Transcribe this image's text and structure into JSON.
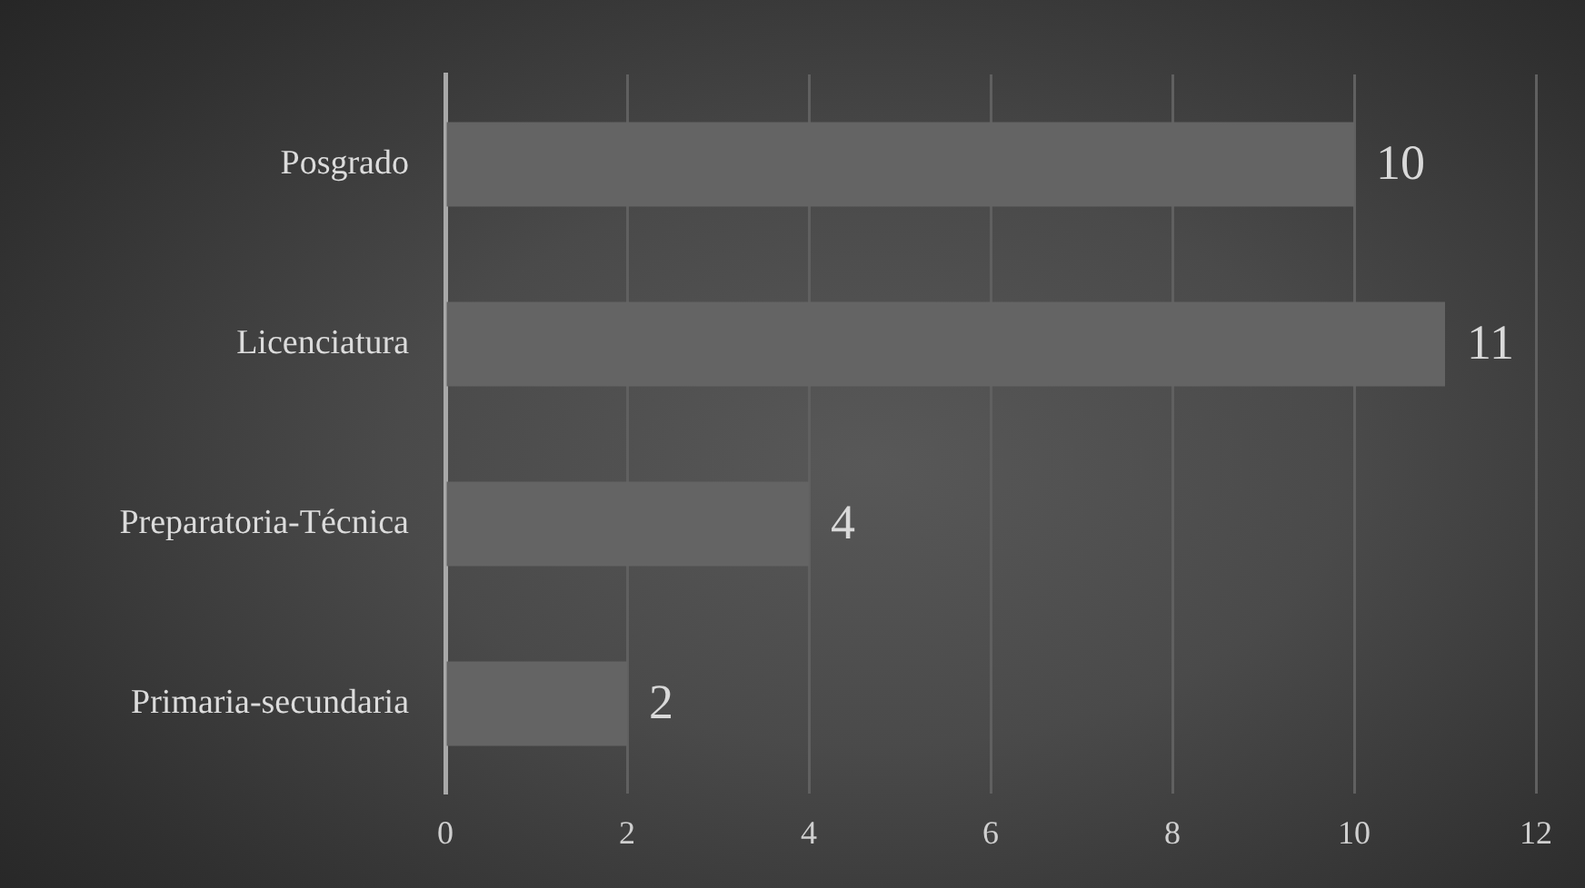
{
  "chart_data": {
    "type": "bar",
    "orientation": "horizontal",
    "categories": [
      "Posgrado",
      "Licenciatura",
      "Preparatoria-Técnica",
      "Primaria-secundaria"
    ],
    "values": [
      10,
      11,
      4,
      2
    ],
    "color": "#646464",
    "xlim": [
      0,
      12
    ],
    "xticks": [
      0,
      2,
      4,
      6,
      8,
      10,
      12
    ],
    "grid": "x",
    "data_labels": true
  }
}
